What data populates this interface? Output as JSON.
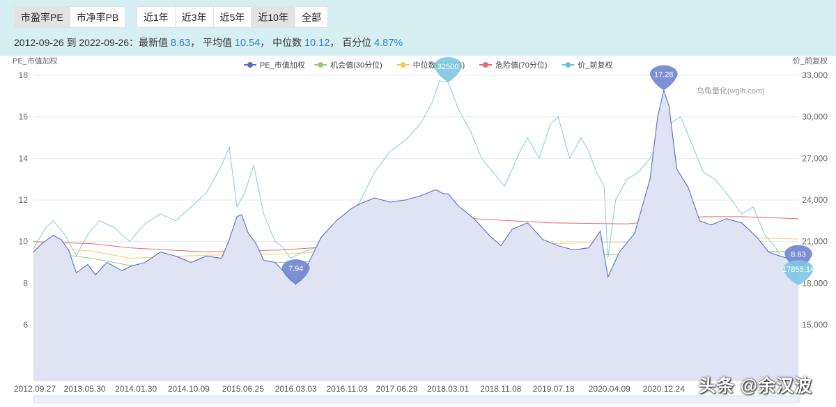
{
  "tabs": {
    "metric": [
      {
        "label": "市盈率PE",
        "active": true
      },
      {
        "label": "市净率PB",
        "active": false
      }
    ],
    "range": [
      {
        "label": "近1年",
        "active": false
      },
      {
        "label": "近3年",
        "active": false
      },
      {
        "label": "近5年",
        "active": false
      },
      {
        "label": "近10年",
        "active": true
      },
      {
        "label": "全部",
        "active": false
      }
    ]
  },
  "stats": {
    "period": "2012-09-26 到 2022-09-26：",
    "latest_label": "最新值",
    "latest_value": "8.63",
    "mean_label": "平均值",
    "mean_value": "10.54",
    "median_label": "中位数",
    "median_value": "10.12",
    "percentile_label": "百分位",
    "percentile_value": "4.87%"
  },
  "watermark": "头条 @余汉波",
  "chart_data": {
    "type": "line",
    "ylabel": "PE_市值加权",
    "ylabel_right": "价_前复权",
    "source_text": "乌龟量化(wglh.com)",
    "grid": true,
    "legend_position": "top-center",
    "ylim": [
      6,
      18
    ],
    "yticks": [
      "6",
      "8",
      "10",
      "12",
      "14",
      "16",
      "18"
    ],
    "ylim_right": [
      15000,
      33000
    ],
    "yticks_right": [
      "15,000",
      "18,000",
      "21,000",
      "24,000",
      "27,000",
      "30,000",
      "33,000"
    ],
    "x_tick_labels": [
      "2012.09.27",
      "2013.05.30",
      "2014.01.30",
      "2014.10.09",
      "2015.06.25",
      "2016.03.03",
      "2016.11.03",
      "2017.06.29",
      "2018.03.01",
      "2018.11.08",
      "2019.07.18",
      "2020.04.09",
      "2020.12.24"
    ],
    "x_tick_years": [
      2012.74,
      2013.41,
      2014.08,
      2014.77,
      2015.48,
      2016.17,
      2016.84,
      2017.49,
      2018.16,
      2018.85,
      2019.54,
      2020.27,
      2020.98
    ],
    "x_range": [
      2012.74,
      2022.74
    ],
    "series": [
      {
        "name": "PE_市值加权",
        "color": "#5470c6",
        "area": true,
        "x": [
          2012.74,
          2012.85,
          2013.0,
          2013.1,
          2013.2,
          2013.3,
          2013.45,
          2013.55,
          2013.7,
          2013.9,
          2014.0,
          2014.2,
          2014.4,
          2014.6,
          2014.8,
          2015.0,
          2015.2,
          2015.3,
          2015.4,
          2015.46,
          2015.55,
          2015.65,
          2015.75,
          2015.9,
          2016.0,
          2016.1,
          2016.17,
          2016.3,
          2016.5,
          2016.7,
          2016.9,
          2017.0,
          2017.2,
          2017.4,
          2017.6,
          2017.8,
          2018.0,
          2018.1,
          2018.16,
          2018.3,
          2018.5,
          2018.7,
          2018.85,
          2019.0,
          2019.2,
          2019.4,
          2019.6,
          2019.8,
          2020.0,
          2020.15,
          2020.25,
          2020.4,
          2020.6,
          2020.8,
          2020.9,
          2020.98,
          2021.05,
          2021.15,
          2021.3,
          2021.45,
          2021.6,
          2021.8,
          2022.0,
          2022.2,
          2022.35,
          2022.5,
          2022.6,
          2022.74
        ],
        "values": [
          9.5,
          9.9,
          10.3,
          10.1,
          9.6,
          8.5,
          8.9,
          8.4,
          9.0,
          8.6,
          8.8,
          9.0,
          9.5,
          9.3,
          9.0,
          9.3,
          9.2,
          10.1,
          11.2,
          11.3,
          10.4,
          9.9,
          9.1,
          9.0,
          8.6,
          8.2,
          7.94,
          8.7,
          10.2,
          11.0,
          11.6,
          11.8,
          12.1,
          11.9,
          12.0,
          12.2,
          12.5,
          12.3,
          12.3,
          11.7,
          11.1,
          10.3,
          9.8,
          10.6,
          10.9,
          10.1,
          9.8,
          9.6,
          9.7,
          10.5,
          8.3,
          9.5,
          10.4,
          13.0,
          16.0,
          17.28,
          16.5,
          13.5,
          12.6,
          11.0,
          10.8,
          11.1,
          10.9,
          10.2,
          9.5,
          9.3,
          9.2,
          8.63
        ]
      },
      {
        "name": "机会值(30分位)",
        "color": "#91cc75",
        "x": [
          2012.74,
          2013.5,
          2014.0,
          2015.0,
          2016.0,
          2017.0,
          2018.0,
          2019.0,
          2020.0,
          2021.0,
          2022.74
        ],
        "values": [
          9.55,
          9.2,
          8.85,
          8.95,
          9.0,
          9.1,
          9.2,
          9.25,
          9.35,
          9.45,
          9.55
        ]
      },
      {
        "name": "中位数(50分位)",
        "color": "#fac858",
        "x": [
          2012.74,
          2013.5,
          2014.0,
          2015.0,
          2016.0,
          2017.0,
          2018.0,
          2019.0,
          2020.0,
          2021.0,
          2022.0,
          2022.74
        ],
        "values": [
          9.7,
          9.55,
          9.2,
          9.35,
          9.4,
          9.6,
          9.75,
          9.85,
          9.95,
          10.0,
          10.2,
          10.12
        ]
      },
      {
        "name": "危险值(70分位)",
        "color": "#ee6666",
        "x": [
          2012.74,
          2013.5,
          2014.0,
          2015.0,
          2016.0,
          2016.8,
          2017.5,
          2018.0,
          2018.5,
          2019.5,
          2020.5,
          2021.5,
          2022.0,
          2022.74
        ],
        "values": [
          10.0,
          9.9,
          9.7,
          9.5,
          9.6,
          9.8,
          10.3,
          10.8,
          11.1,
          10.9,
          10.85,
          11.2,
          11.2,
          11.1
        ]
      },
      {
        "name": "价_前复权",
        "color": "#73c0de",
        "axis": "right",
        "x": [
          2012.74,
          2012.9,
          2013.0,
          2013.15,
          2013.3,
          2013.45,
          2013.6,
          2013.8,
          2014.0,
          2014.2,
          2014.4,
          2014.6,
          2014.8,
          2015.0,
          2015.2,
          2015.3,
          2015.4,
          2015.5,
          2015.62,
          2015.75,
          2015.9,
          2016.0,
          2016.1,
          2016.25,
          2016.4,
          2016.6,
          2016.8,
          2017.0,
          2017.2,
          2017.4,
          2017.6,
          2017.8,
          2017.95,
          2018.05,
          2018.16,
          2018.3,
          2018.45,
          2018.6,
          2018.75,
          2018.9,
          2019.1,
          2019.2,
          2019.35,
          2019.5,
          2019.6,
          2019.75,
          2019.9,
          2020.0,
          2020.1,
          2020.2,
          2020.25,
          2020.35,
          2020.5,
          2020.65,
          2020.8,
          2020.95,
          2021.05,
          2021.2,
          2021.35,
          2021.5,
          2021.65,
          2021.8,
          2022.0,
          2022.15,
          2022.3,
          2022.45,
          2022.6,
          2022.74
        ],
        "values": [
          20500,
          22000,
          22500,
          21500,
          20000,
          21500,
          22500,
          22000,
          21000,
          22300,
          23000,
          22500,
          23500,
          24500,
          26500,
          27800,
          23500,
          24500,
          26500,
          23000,
          21000,
          20600,
          19800,
          20200,
          20500,
          21000,
          22800,
          23800,
          26000,
          27500,
          28300,
          29500,
          31000,
          32600,
          32500,
          30500,
          29000,
          27000,
          26000,
          25000,
          27500,
          28500,
          27000,
          29500,
          30000,
          27000,
          28500,
          27500,
          26000,
          25000,
          19800,
          24000,
          25500,
          26000,
          27000,
          28800,
          29500,
          30000,
          28000,
          26000,
          25500,
          24500,
          23000,
          23500,
          21500,
          20500,
          19000,
          17855.14
        ]
      }
    ],
    "markers": [
      {
        "series": "PE_市值加权",
        "label": "7.94",
        "x": 2016.17,
        "value": 7.94
      },
      {
        "series": "PE_市值加权",
        "label": "17.28",
        "x": 2020.98,
        "value": 17.28
      },
      {
        "series": "PE_市值加权",
        "label": "8.63",
        "x": 2022.74,
        "value": 8.63
      },
      {
        "series": "价_前复权",
        "label": "32500",
        "x": 2018.16,
        "value": 32500
      },
      {
        "series": "价_前复权",
        "label": "17855.14",
        "x": 2022.74,
        "value": 17855.14
      }
    ]
  }
}
